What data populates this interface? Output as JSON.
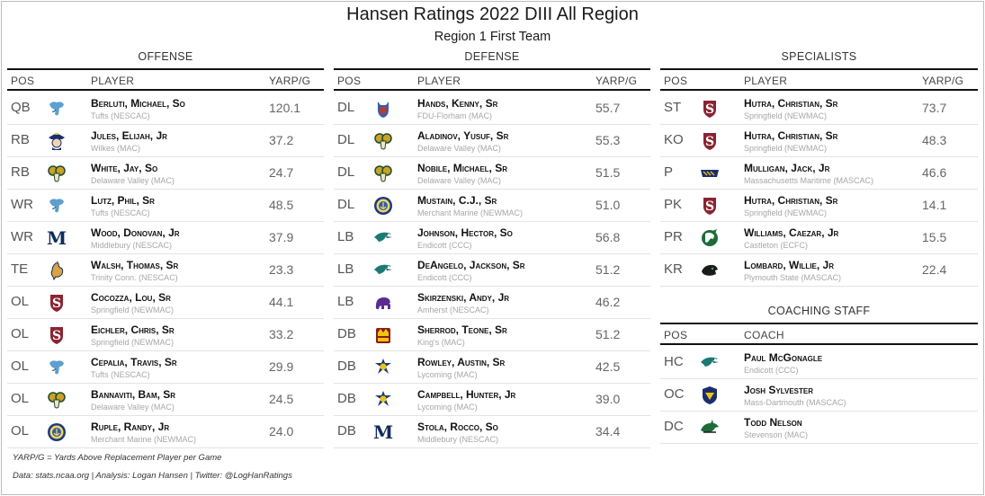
{
  "title": "Hansen Ratings 2022 DIII All Region",
  "subtitle": "Region 1 First Team",
  "columns": {
    "pos": "POS",
    "player": "PLAYER",
    "yarp": "YARP/G",
    "coach": "COACH"
  },
  "offense": {
    "title": "OFFENSE",
    "rows": [
      {
        "pos": "QB",
        "logo": "tufts-jumbo-logo",
        "name": "Berluti, Michael, So",
        "school": "Tufts (NESCAC)",
        "yarp": "120.1"
      },
      {
        "pos": "RB",
        "logo": "wilkes-colonel-logo",
        "name": "Jules, Elijah, Jr",
        "school": "Wilkes (MAC)",
        "yarp": "37.2"
      },
      {
        "pos": "RB",
        "logo": "delaware-valley-ram-logo",
        "name": "White, Jay, So",
        "school": "Delaware Valley (MAC)",
        "yarp": "24.7"
      },
      {
        "pos": "WR",
        "logo": "tufts-jumbo-logo",
        "name": "Lutz, Phil, Sr",
        "school": "Tufts (NESCAC)",
        "yarp": "48.5"
      },
      {
        "pos": "WR",
        "logo": "middlebury-m-logo",
        "name": "Wood, Donovan, Jr",
        "school": "Middlebury (NESCAC)",
        "yarp": "37.9"
      },
      {
        "pos": "TE",
        "logo": "trinity-bantam-logo",
        "name": "Walsh, Thomas, Sr",
        "school": "Trinity Conn. (NESCAC)",
        "yarp": "23.3"
      },
      {
        "pos": "OL",
        "logo": "springfield-s-logo",
        "name": "Cocozza, Lou, Sr",
        "school": "Springfield (NEWMAC)",
        "yarp": "44.1"
      },
      {
        "pos": "OL",
        "logo": "springfield-s-logo",
        "name": "Eichler, Chris, Sr",
        "school": "Springfield (NEWMAC)",
        "yarp": "33.2"
      },
      {
        "pos": "OL",
        "logo": "tufts-jumbo-logo",
        "name": "Cepalia, Travis, Sr",
        "school": "Tufts (NESCAC)",
        "yarp": "29.9"
      },
      {
        "pos": "OL",
        "logo": "delaware-valley-ram-logo",
        "name": "Bannaviti, Bam, Sr",
        "school": "Delaware Valley (MAC)",
        "yarp": "24.5"
      },
      {
        "pos": "OL",
        "logo": "merchant-marine-seal-logo",
        "name": "Ruple, Randy, Jr",
        "school": "Merchant Marine (NEWMAC)",
        "yarp": "24.0"
      }
    ]
  },
  "defense": {
    "title": "DEFENSE",
    "rows": [
      {
        "pos": "DL",
        "logo": "fdu-florham-devil-logo",
        "name": "Hands, Kenny, Sr",
        "school": "FDU-Florham (MAC)",
        "yarp": "55.7"
      },
      {
        "pos": "DL",
        "logo": "delaware-valley-ram-logo",
        "name": "Aladinov, Yusuf, Sr",
        "school": "Delaware Valley (MAC)",
        "yarp": "55.3"
      },
      {
        "pos": "DL",
        "logo": "delaware-valley-ram-logo",
        "name": "Nobile, Michael, Sr",
        "school": "Delaware Valley (MAC)",
        "yarp": "51.5"
      },
      {
        "pos": "DL",
        "logo": "merchant-marine-seal-logo",
        "name": "Mustain, C.J., Sr",
        "school": "Merchant Marine (NEWMAC)",
        "yarp": "51.0"
      },
      {
        "pos": "LB",
        "logo": "endicott-gull-logo",
        "name": "Johnson, Hector, So",
        "school": "Endicott (CCC)",
        "yarp": "56.8"
      },
      {
        "pos": "LB",
        "logo": "endicott-gull-logo",
        "name": "DeAngelo, Jackson, Sr",
        "school": "Endicott (CCC)",
        "yarp": "51.2"
      },
      {
        "pos": "LB",
        "logo": "amherst-mammoth-logo",
        "name": "Skirzenski, Andy, Jr",
        "school": "Amherst (NESCAC)",
        "yarp": "46.2"
      },
      {
        "pos": "DB",
        "logo": "kings-monarch-logo",
        "name": "Sherrod, Teone, Sr",
        "school": "King's (MAC)",
        "yarp": "51.2"
      },
      {
        "pos": "DB",
        "logo": "lycoming-warrior-logo",
        "name": "Rowley, Austin, Sr",
        "school": "Lycoming (MAC)",
        "yarp": "42.5"
      },
      {
        "pos": "DB",
        "logo": "lycoming-warrior-logo",
        "name": "Campbell, Hunter, Jr",
        "school": "Lycoming (MAC)",
        "yarp": "39.0"
      },
      {
        "pos": "DB",
        "logo": "middlebury-m-logo",
        "name": "Stola, Rocco, So",
        "school": "Middlebury (NESCAC)",
        "yarp": "34.4"
      }
    ]
  },
  "specialists": {
    "title": "SPECIALISTS",
    "rows": [
      {
        "pos": "ST",
        "logo": "springfield-s-logo",
        "name": "Hutra, Christian, Sr",
        "school": "Springfield (NEWMAC)",
        "yarp": "73.7"
      },
      {
        "pos": "KO",
        "logo": "springfield-s-logo",
        "name": "Hutra, Christian, Sr",
        "school": "Springfield (NEWMAC)",
        "yarp": "48.3"
      },
      {
        "pos": "P",
        "logo": "mass-maritime-buccaneer-logo",
        "name": "Mulligan, Jack, Jr",
        "school": "Massachusetts Maritime (MASCAC)",
        "yarp": "46.6"
      },
      {
        "pos": "PK",
        "logo": "springfield-s-logo",
        "name": "Hutra, Christian, Sr",
        "school": "Springfield (NEWMAC)",
        "yarp": "14.1"
      },
      {
        "pos": "PR",
        "logo": "castleton-spartan-logo",
        "name": "Williams, Caezar, Jr",
        "school": "Castleton (ECFC)",
        "yarp": "15.5"
      },
      {
        "pos": "KR",
        "logo": "plymouth-state-panther-logo",
        "name": "Lombard, Willie, Jr",
        "school": "Plymouth State (MASCAC)",
        "yarp": "22.4"
      }
    ]
  },
  "coaching": {
    "title": "COACHING STAFF",
    "rows": [
      {
        "pos": "HC",
        "logo": "endicott-gull-logo",
        "name": "Paul McGonagle",
        "school": "Endicott (CCC)"
      },
      {
        "pos": "OC",
        "logo": "umass-dartmouth-corsair-logo",
        "name": "Josh Sylvester",
        "school": "Mass-Dartmouth (MASCAC)"
      },
      {
        "pos": "DC",
        "logo": "stevenson-mustang-logo",
        "name": "Todd Nelson",
        "school": "Stevenson (MAC)"
      }
    ]
  },
  "footnote": "YARP/G = Yards Above Replacement Player per Game",
  "credits": "Data: stats.ncaa.org | Analysis: Logan Hansen | Twitter: @LogHanRatings",
  "colors": {
    "springfield": "#8a2432",
    "middlebury": "#0d2c5c",
    "tufts": "#5d9fd0",
    "endicott": "#1b7a74",
    "delval": "#c9a227",
    "amherst": "#5a2d91"
  }
}
